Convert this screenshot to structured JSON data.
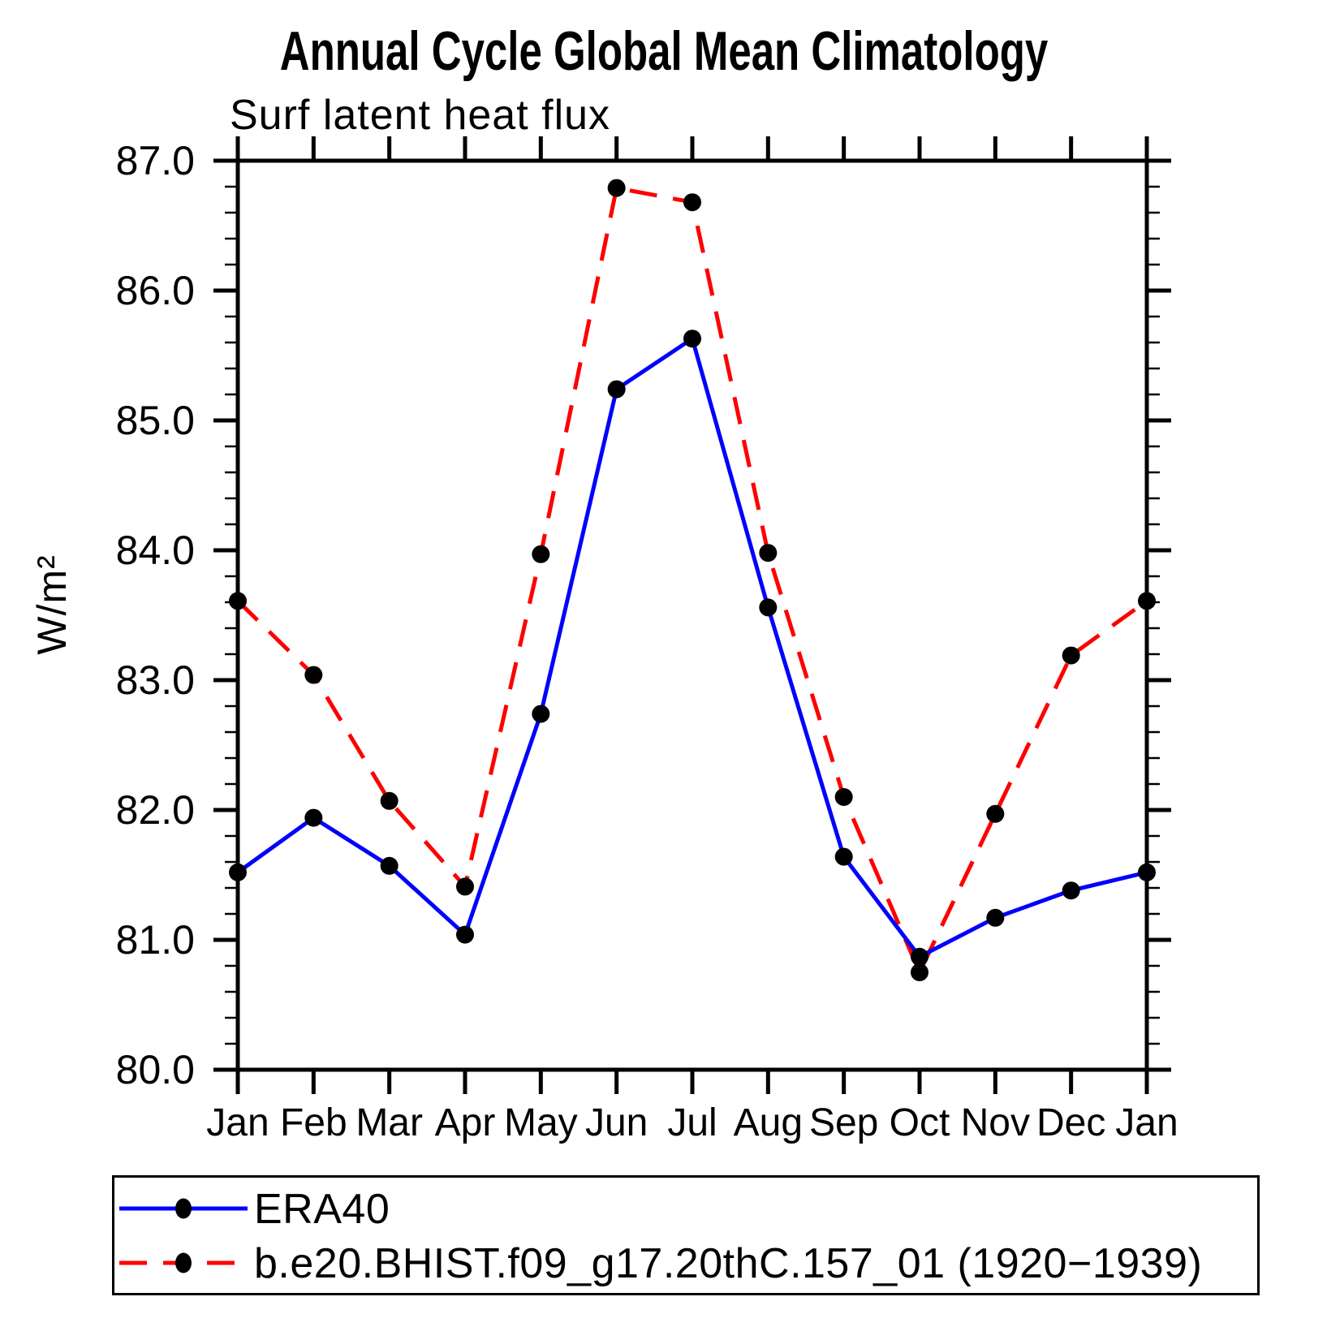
{
  "legend": {
    "position": "bottom",
    "entries": [
      {
        "label": "ERA40",
        "line_color": "#0000ff",
        "line_style": "solid",
        "marker_color": "#000000"
      },
      {
        "label": "b.e20.BHIST.f09_g17.20thC.157_01 (1920−1939)",
        "line_color": "#ff0000",
        "line_style": "dashed",
        "marker_color": "#000000"
      }
    ]
  },
  "chart_data": {
    "type": "line",
    "title": "Annual Cycle Global Mean Climatology",
    "subtitle": "Surf latent heat flux",
    "ylabel": "W/m²",
    "xlabel": "",
    "categories": [
      "Jan",
      "Feb",
      "Mar",
      "Apr",
      "May",
      "Jun",
      "Jul",
      "Aug",
      "Sep",
      "Oct",
      "Nov",
      "Dec",
      "Jan"
    ],
    "series": [
      {
        "name": "ERA40",
        "color": "#0000ff",
        "style": "solid",
        "marker": "filled-circle",
        "marker_color": "#000000",
        "values": [
          81.52,
          81.94,
          81.57,
          81.04,
          82.74,
          85.24,
          85.63,
          83.56,
          81.64,
          80.87,
          81.17,
          81.38,
          81.52
        ]
      },
      {
        "name": "b.e20.BHIST.f09_g17.20thC.157_01 (1920−1939)",
        "color": "#ff0000",
        "style": "dashed",
        "marker": "filled-circle",
        "marker_color": "#000000",
        "values": [
          83.61,
          83.04,
          82.07,
          81.41,
          83.97,
          86.79,
          86.68,
          83.98,
          82.1,
          80.75,
          81.97,
          83.19,
          83.61
        ]
      }
    ],
    "ylim": [
      80.0,
      87.0
    ],
    "ytick_step": 1.0,
    "yminor_step": 0.2,
    "ytick_labels": [
      "80.0",
      "81.0",
      "82.0",
      "83.0",
      "84.0",
      "85.0",
      "86.0",
      "87.0"
    ],
    "grid": false,
    "axis_color": "#000000",
    "legend_position": "bottom"
  }
}
